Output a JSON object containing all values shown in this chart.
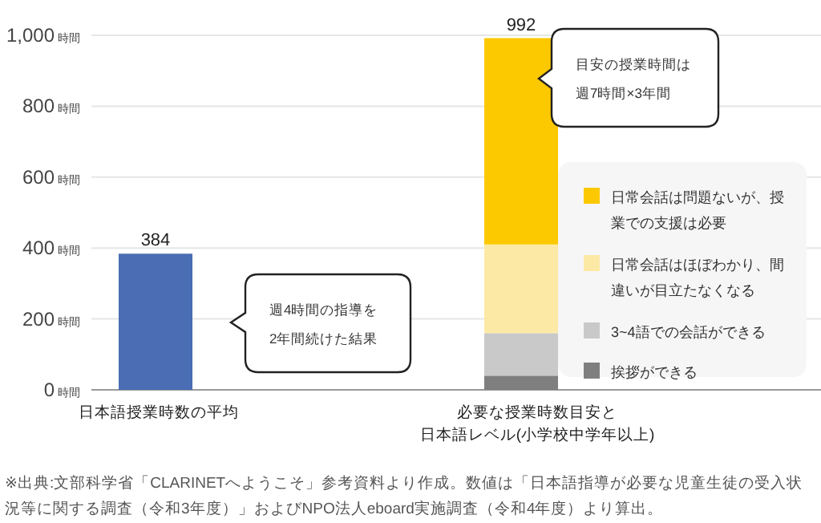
{
  "chart_data": {
    "type": "bar",
    "stacked": true,
    "categories": [
      "日本語授業時数の平均",
      "必要な授業時数目安と日本語レベル(小学校中学年以上)"
    ],
    "series": [
      {
        "color": "#4a6db3",
        "values": [
          384,
          null
        ]
      },
      {
        "name": "挨拶ができる",
        "color": "#7f7f7f",
        "values": [
          null,
          40
        ]
      },
      {
        "name": "3~4語での会話ができる",
        "color": "#c9c9c9",
        "values": [
          null,
          120
        ]
      },
      {
        "name": "日常会話はほぼわかり、間違いが目立たなくなる",
        "color": "#fde9a6",
        "values": [
          null,
          250
        ]
      },
      {
        "name": "日常会話は問題ないが、授業での支援は必要",
        "color": "#fcc800",
        "values": [
          null,
          582
        ]
      }
    ],
    "totals": [
      "384",
      "992"
    ],
    "ylim": [
      0,
      1000
    ],
    "yticks": [
      {
        "value": 0,
        "label": "0時間"
      },
      {
        "value": 200,
        "label": "200時間"
      },
      {
        "value": 400,
        "label": "400時間"
      },
      {
        "value": 600,
        "label": "600時間"
      },
      {
        "value": 800,
        "label": "800時間"
      },
      {
        "value": 1000,
        "label": "1,000時間"
      }
    ],
    "grid": "y",
    "legend": "right",
    "annotations": [
      "週4時間の指導を2年間続けた結果",
      "目安の授業時間は週7時間×3年間",
      "※出典:文部科学省「CLARINETへようこそ」参考資料より作成。数値は「日本語指導が必要な児童生徒の受入状況等に関する調査（令和3年度）」およびNPO法人eboard実施調査（令和4年度）より算出。"
    ]
  }
}
